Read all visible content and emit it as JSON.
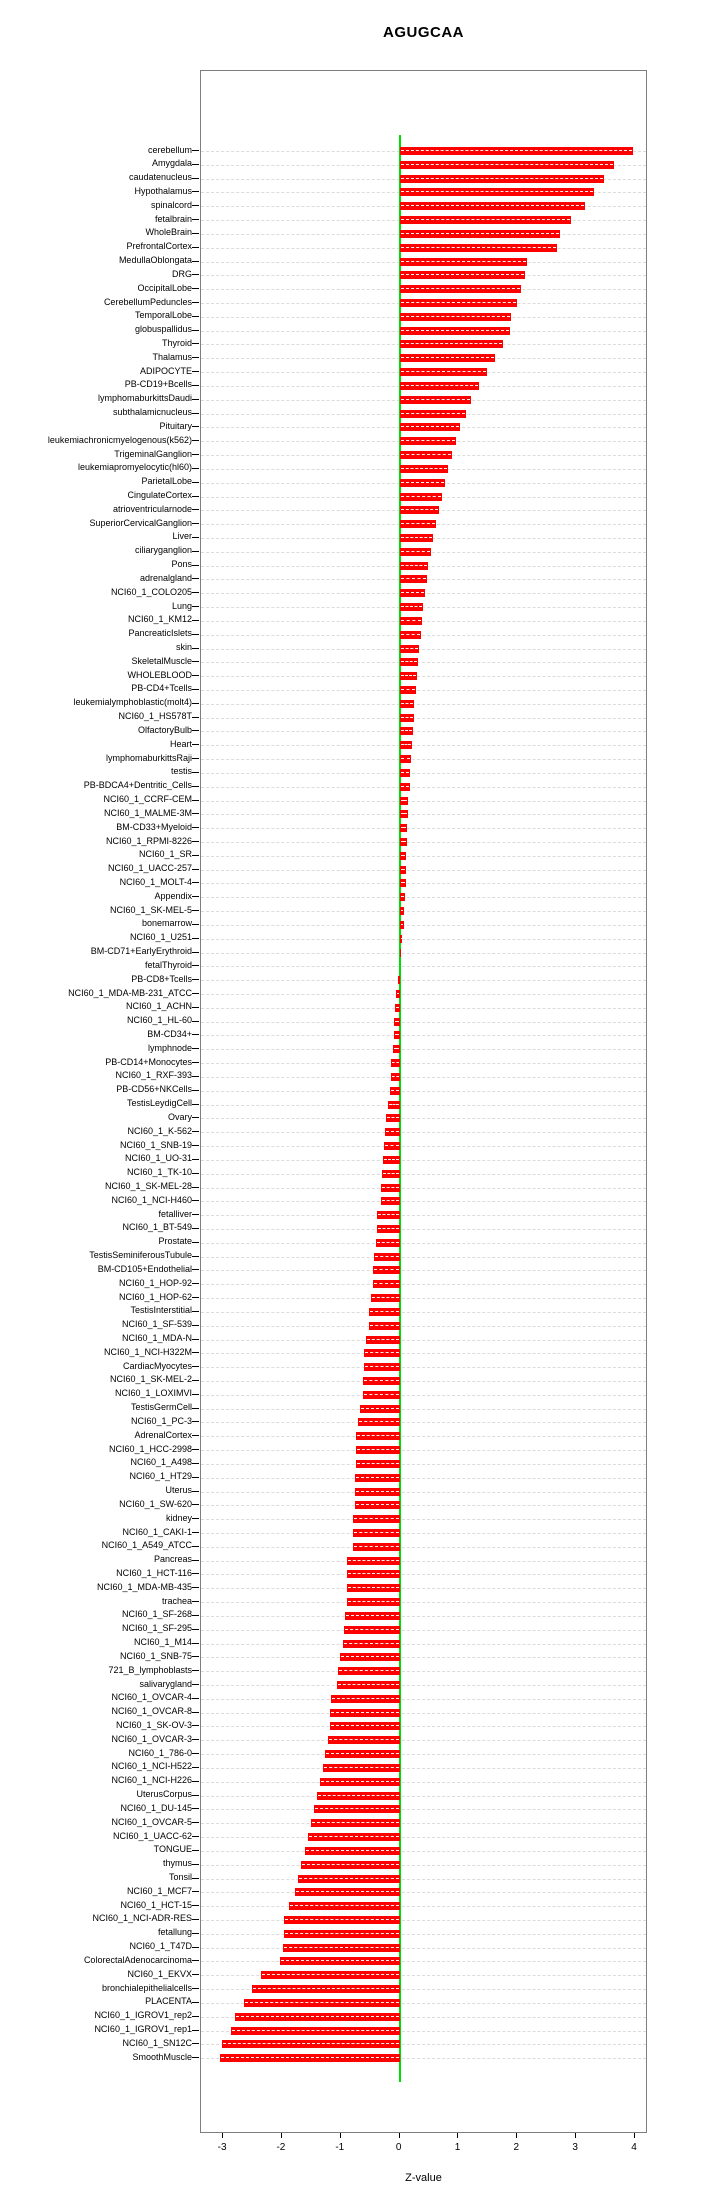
{
  "title": "AGUGCAA",
  "chart_data": {
    "type": "bar",
    "orientation": "horizontal",
    "title": "AGUGCAA",
    "xlabel": "Z-value",
    "ylabel": "",
    "xlim": [
      -3.375,
      4.22
    ],
    "xticks": [
      "-3",
      "-2",
      "-1",
      "0",
      "1",
      "2",
      "3",
      "4"
    ],
    "xtick_values": [
      -3,
      -2,
      -1,
      0,
      1,
      2,
      3,
      4
    ],
    "grid": true,
    "legend": false,
    "bar_color": "#ff0000",
    "zero_line_color": "#00dd00",
    "grid_color": "#dcdcdc",
    "axis_box_color": "#7e7e7e",
    "categories": [
      "cerebellum",
      "Amygdala",
      "caudatenucleus",
      "Hypothalamus",
      "spinalcord",
      "fetalbrain",
      "WholeBrain",
      "PrefrontalCortex",
      "MedullaOblongata",
      "DRG",
      "OccipitalLobe",
      "CerebellumPeduncles",
      "TemporalLobe",
      "globuspallidus",
      "Thyroid",
      "Thalamus",
      "ADIPOCYTE",
      "PB-CD19+Bcells",
      "lymphomaburkittsDaudi",
      "subthalamicnucleus",
      "Pituitary",
      "leukemiachronicmyelogenous(k562)",
      "TrigeminalGanglion",
      "leukemiapromyelocytic(hl60)",
      "ParietalLobe",
      "CingulateCortex",
      "atrioventricularnode",
      "SuperiorCervicalGanglion",
      "Liver",
      "ciliaryganglion",
      "Pons",
      "adrenalgland",
      "NCI60_1_COLO205",
      "Lung",
      "NCI60_1_KM12",
      "PancreaticIslets",
      "skin",
      "SkeletalMuscle",
      "WHOLEBLOOD",
      "PB-CD4+Tcells",
      "leukemialymphoblastic(molt4)",
      "NCI60_1_HS578T",
      "OlfactoryBulb",
      "Heart",
      "lymphomaburkittsRaji",
      "testis",
      "PB-BDCA4+Dentritic_Cells",
      "NCI60_1_CCRF-CEM",
      "NCI60_1_MALME-3M",
      "BM-CD33+Myeloid",
      "NCI60_1_RPMI-8226",
      "NCI60_1_SR",
      "NCI60_1_UACC-257",
      "NCI60_1_MOLT-4",
      "Appendix",
      "NCI60_1_SK-MEL-5",
      "bonemarrow",
      "NCI60_1_U251",
      "BM-CD71+EarlyErythroid",
      "fetalThyroid",
      "PB-CD8+Tcells",
      "NCI60_1_MDA-MB-231_ATCC",
      "NCI60_1_ACHN",
      "NCI60_1_HL-60",
      "BM-CD34+",
      "lymphnode",
      "PB-CD14+Monocytes",
      "NCI60_1_RXF-393",
      "PB-CD56+NKCells",
      "TestisLeydigCell",
      "Ovary",
      "NCI60_1_K-562",
      "NCI60_1_SNB-19",
      "NCI60_1_UO-31",
      "NCI60_1_TK-10",
      "NCI60_1_SK-MEL-28",
      "NCI60_1_NCI-H460",
      "fetalliver",
      "NCI60_1_BT-549",
      "Prostate",
      "TestisSeminiferousTubule",
      "BM-CD105+Endothelial",
      "NCI60_1_HOP-92",
      "NCI60_1_HOP-62",
      "TestisInterstitial",
      "NCI60_1_SF-539",
      "NCI60_1_MDA-N",
      "NCI60_1_NCI-H322M",
      "CardiacMyocytes",
      "NCI60_1_SK-MEL-2",
      "NCI60_1_LOXIMVI",
      "TestisGermCell",
      "NCI60_1_PC-3",
      "AdrenalCortex",
      "NCI60_1_HCC-2998",
      "NCI60_1_A498",
      "NCI60_1_HT29",
      "Uterus",
      "NCI60_1_SW-620",
      "kidney",
      "NCI60_1_CAKI-1",
      "NCI60_1_A549_ATCC",
      "Pancreas",
      "NCI60_1_HCT-116",
      "NCI60_1_MDA-MB-435",
      "trachea",
      "NCI60_1_SF-268",
      "NCI60_1_SF-295",
      "NCI60_1_M14",
      "NCI60_1_SNB-75",
      "721_B_lymphoblasts",
      "salivarygland",
      "NCI60_1_OVCAR-4",
      "NCI60_1_OVCAR-8",
      "NCI60_1_SK-OV-3",
      "NCI60_1_OVCAR-3",
      "NCI60_1_786-0",
      "NCI60_1_NCI-H522",
      "NCI60_1_NCI-H226",
      "UterusCorpus",
      "NCI60_1_DU-145",
      "NCI60_1_OVCAR-5",
      "NCI60_1_UACC-62",
      "TONGUE",
      "thymus",
      "Tonsil",
      "NCI60_1_MCF7",
      "NCI60_1_HCT-15",
      "NCI60_1_NCI-ADR-RES",
      "fetallung",
      "NCI60_1_T47D",
      "ColorectalAdenocarcinoma",
      "NCI60_1_EKVX",
      "bronchialepithelialcells",
      "PLACENTA",
      "NCI60_1_IGROV1_rep2",
      "NCI60_1_IGROV1_rep1",
      "NCI60_1_SN12C",
      "SmoothMuscle"
    ],
    "values": [
      3.97,
      3.64,
      3.48,
      3.31,
      3.15,
      2.91,
      2.72,
      2.68,
      2.16,
      2.13,
      2.06,
      2.0,
      1.9,
      1.88,
      1.75,
      1.62,
      1.48,
      1.35,
      1.22,
      1.12,
      1.02,
      0.96,
      0.89,
      0.83,
      0.77,
      0.72,
      0.67,
      0.62,
      0.57,
      0.53,
      0.49,
      0.46,
      0.43,
      0.4,
      0.38,
      0.36,
      0.33,
      0.31,
      0.29,
      0.27,
      0.25,
      0.24,
      0.22,
      0.21,
      0.19,
      0.18,
      0.17,
      0.15,
      0.14,
      0.13,
      0.12,
      0.11,
      0.1,
      0.1,
      0.09,
      0.08,
      0.07,
      0.04,
      0.01,
      0.0,
      -0.03,
      -0.07,
      -0.08,
      -0.1,
      -0.1,
      -0.11,
      -0.14,
      -0.15,
      -0.17,
      -0.19,
      -0.23,
      -0.25,
      -0.27,
      -0.28,
      -0.3,
      -0.32,
      -0.32,
      -0.39,
      -0.39,
      -0.4,
      -0.44,
      -0.45,
      -0.46,
      -0.49,
      -0.52,
      -0.52,
      -0.57,
      -0.61,
      -0.61,
      -0.62,
      -0.63,
      -0.67,
      -0.7,
      -0.74,
      -0.74,
      -0.74,
      -0.75,
      -0.76,
      -0.76,
      -0.79,
      -0.79,
      -0.8,
      -0.89,
      -0.9,
      -0.9,
      -0.9,
      -0.93,
      -0.95,
      -0.97,
      -1.02,
      -1.04,
      -1.06,
      -1.16,
      -1.18,
      -1.19,
      -1.22,
      -1.26,
      -1.3,
      -1.35,
      -1.4,
      -1.45,
      -1.5,
      -1.55,
      -1.6,
      -1.68,
      -1.72,
      -1.78,
      -1.88,
      -1.96,
      -1.96,
      -1.99,
      -2.04,
      -2.36,
      -2.5,
      -2.64,
      -2.8,
      -2.87,
      -3.02,
      -3.06
    ]
  }
}
